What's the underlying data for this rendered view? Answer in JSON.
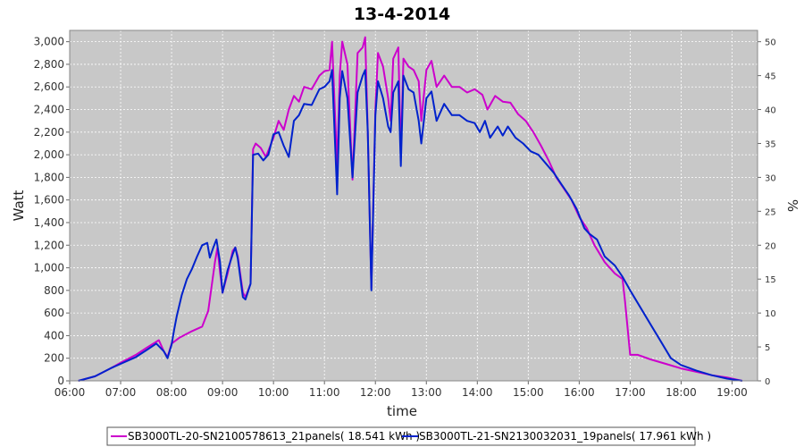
{
  "chart_data": {
    "type": "line",
    "title": "13-4-2014",
    "xlabel": "time",
    "ylabel": "Watt",
    "y2label": "%",
    "x_ticks": [
      "06:00",
      "07:00",
      "08:00",
      "09:00",
      "10:00",
      "11:00",
      "12:00",
      "13:00",
      "14:00",
      "15:00",
      "16:00",
      "17:00",
      "18:00",
      "19:00"
    ],
    "y_ticks": [
      "0",
      "200",
      "400",
      "600",
      "800",
      "1,000",
      "1,200",
      "1,400",
      "1,600",
      "1,800",
      "2,000",
      "2,200",
      "2,400",
      "2,600",
      "2,800",
      "3,000"
    ],
    "y2_ticks": [
      "0",
      "5",
      "10",
      "15",
      "20",
      "25",
      "30",
      "35",
      "40",
      "45",
      "50"
    ],
    "ylim": [
      0,
      3100
    ],
    "xlim_hours": [
      6.0,
      19.5
    ],
    "grid": true,
    "legend_position": "bottom",
    "series": [
      {
        "name": "SB3000TL-20-SN2100578613_21panels( 18.541 kWh )",
        "color": "#cc00cc",
        "points": [
          [
            6.17,
            0
          ],
          [
            6.5,
            40
          ],
          [
            6.8,
            110
          ],
          [
            7.0,
            160
          ],
          [
            7.3,
            230
          ],
          [
            7.5,
            290
          ],
          [
            7.75,
            360
          ],
          [
            7.85,
            260
          ],
          [
            7.92,
            210
          ],
          [
            8.0,
            330
          ],
          [
            8.15,
            380
          ],
          [
            8.4,
            440
          ],
          [
            8.6,
            480
          ],
          [
            8.72,
            620
          ],
          [
            8.85,
            1050
          ],
          [
            8.9,
            1180
          ],
          [
            8.95,
            960
          ],
          [
            9.0,
            780
          ],
          [
            9.1,
            950
          ],
          [
            9.2,
            1150
          ],
          [
            9.25,
            1180
          ],
          [
            9.3,
            1100
          ],
          [
            9.4,
            780
          ],
          [
            9.45,
            740
          ],
          [
            9.55,
            860
          ],
          [
            9.6,
            2050
          ],
          [
            9.65,
            2100
          ],
          [
            9.75,
            2060
          ],
          [
            9.85,
            1980
          ],
          [
            10.0,
            2150
          ],
          [
            10.1,
            2300
          ],
          [
            10.2,
            2220
          ],
          [
            10.3,
            2400
          ],
          [
            10.4,
            2520
          ],
          [
            10.5,
            2470
          ],
          [
            10.6,
            2600
          ],
          [
            10.75,
            2580
          ],
          [
            10.9,
            2700
          ],
          [
            11.0,
            2740
          ],
          [
            11.1,
            2750
          ],
          [
            11.15,
            3000
          ],
          [
            11.25,
            1900
          ],
          [
            11.3,
            2700
          ],
          [
            11.35,
            3000
          ],
          [
            11.45,
            2800
          ],
          [
            11.55,
            1780
          ],
          [
            11.65,
            2900
          ],
          [
            11.75,
            2950
          ],
          [
            11.8,
            3040
          ],
          [
            11.85,
            2200
          ],
          [
            11.92,
            820
          ],
          [
            12.0,
            2400
          ],
          [
            12.05,
            2900
          ],
          [
            12.15,
            2780
          ],
          [
            12.25,
            2500
          ],
          [
            12.3,
            2300
          ],
          [
            12.35,
            2850
          ],
          [
            12.45,
            2950
          ],
          [
            12.5,
            2000
          ],
          [
            12.55,
            2850
          ],
          [
            12.65,
            2780
          ],
          [
            12.75,
            2750
          ],
          [
            12.85,
            2650
          ],
          [
            12.9,
            2300
          ],
          [
            13.0,
            2750
          ],
          [
            13.1,
            2830
          ],
          [
            13.2,
            2600
          ],
          [
            13.35,
            2700
          ],
          [
            13.5,
            2600
          ],
          [
            13.65,
            2600
          ],
          [
            13.8,
            2550
          ],
          [
            13.95,
            2580
          ],
          [
            14.1,
            2530
          ],
          [
            14.2,
            2400
          ],
          [
            14.35,
            2520
          ],
          [
            14.5,
            2470
          ],
          [
            14.65,
            2460
          ],
          [
            14.8,
            2360
          ],
          [
            14.95,
            2300
          ],
          [
            15.1,
            2200
          ],
          [
            15.25,
            2080
          ],
          [
            15.4,
            1950
          ],
          [
            15.55,
            1800
          ],
          [
            15.7,
            1700
          ],
          [
            15.85,
            1600
          ],
          [
            16.0,
            1450
          ],
          [
            16.15,
            1350
          ],
          [
            16.3,
            1200
          ],
          [
            16.5,
            1050
          ],
          [
            16.7,
            950
          ],
          [
            16.85,
            900
          ],
          [
            16.9,
            700
          ],
          [
            17.0,
            230
          ],
          [
            17.15,
            230
          ],
          [
            17.4,
            190
          ],
          [
            17.7,
            150
          ],
          [
            18.0,
            110
          ],
          [
            18.3,
            80
          ],
          [
            18.6,
            50
          ],
          [
            18.9,
            30
          ],
          [
            19.2,
            0
          ]
        ]
      },
      {
        "name": "SB3000TL-21-SN2130032031_19panels( 17.961 kWh )",
        "color": "#0022cc",
        "points": [
          [
            6.17,
            0
          ],
          [
            6.5,
            40
          ],
          [
            6.8,
            110
          ],
          [
            7.0,
            150
          ],
          [
            7.3,
            210
          ],
          [
            7.5,
            270
          ],
          [
            7.7,
            330
          ],
          [
            7.85,
            260
          ],
          [
            7.92,
            200
          ],
          [
            8.0,
            320
          ],
          [
            8.05,
            450
          ],
          [
            8.1,
            570
          ],
          [
            8.2,
            760
          ],
          [
            8.3,
            900
          ],
          [
            8.4,
            990
          ],
          [
            8.5,
            1100
          ],
          [
            8.6,
            1200
          ],
          [
            8.7,
            1220
          ],
          [
            8.75,
            1090
          ],
          [
            8.82,
            1180
          ],
          [
            8.88,
            1250
          ],
          [
            8.95,
            1050
          ],
          [
            9.0,
            780
          ],
          [
            9.1,
            980
          ],
          [
            9.2,
            1120
          ],
          [
            9.25,
            1180
          ],
          [
            9.3,
            1080
          ],
          [
            9.4,
            740
          ],
          [
            9.45,
            720
          ],
          [
            9.55,
            860
          ],
          [
            9.6,
            2000
          ],
          [
            9.7,
            2010
          ],
          [
            9.8,
            1950
          ],
          [
            9.9,
            2000
          ],
          [
            10.0,
            2180
          ],
          [
            10.1,
            2200
          ],
          [
            10.2,
            2080
          ],
          [
            10.3,
            1980
          ],
          [
            10.4,
            2300
          ],
          [
            10.5,
            2350
          ],
          [
            10.6,
            2450
          ],
          [
            10.75,
            2440
          ],
          [
            10.9,
            2580
          ],
          [
            11.0,
            2600
          ],
          [
            11.1,
            2650
          ],
          [
            11.15,
            2750
          ],
          [
            11.25,
            1650
          ],
          [
            11.3,
            2500
          ],
          [
            11.35,
            2740
          ],
          [
            11.45,
            2500
          ],
          [
            11.55,
            1800
          ],
          [
            11.65,
            2550
          ],
          [
            11.75,
            2700
          ],
          [
            11.8,
            2750
          ],
          [
            11.85,
            2200
          ],
          [
            11.92,
            800
          ],
          [
            12.0,
            2350
          ],
          [
            12.05,
            2650
          ],
          [
            12.15,
            2500
          ],
          [
            12.25,
            2250
          ],
          [
            12.3,
            2200
          ],
          [
            12.35,
            2550
          ],
          [
            12.45,
            2650
          ],
          [
            12.5,
            1900
          ],
          [
            12.55,
            2700
          ],
          [
            12.65,
            2580
          ],
          [
            12.75,
            2550
          ],
          [
            12.85,
            2300
          ],
          [
            12.9,
            2100
          ],
          [
            13.0,
            2500
          ],
          [
            13.1,
            2560
          ],
          [
            13.2,
            2300
          ],
          [
            13.35,
            2450
          ],
          [
            13.5,
            2350
          ],
          [
            13.65,
            2350
          ],
          [
            13.8,
            2300
          ],
          [
            13.95,
            2280
          ],
          [
            14.05,
            2200
          ],
          [
            14.15,
            2300
          ],
          [
            14.25,
            2150
          ],
          [
            14.4,
            2250
          ],
          [
            14.5,
            2170
          ],
          [
            14.6,
            2250
          ],
          [
            14.75,
            2150
          ],
          [
            14.9,
            2100
          ],
          [
            15.05,
            2030
          ],
          [
            15.2,
            2000
          ],
          [
            15.35,
            1920
          ],
          [
            15.5,
            1840
          ],
          [
            15.65,
            1740
          ],
          [
            15.8,
            1640
          ],
          [
            15.95,
            1520
          ],
          [
            16.1,
            1350
          ],
          [
            16.2,
            1300
          ],
          [
            16.35,
            1250
          ],
          [
            16.5,
            1100
          ],
          [
            16.7,
            1020
          ],
          [
            16.85,
            920
          ],
          [
            17.0,
            800
          ],
          [
            17.2,
            650
          ],
          [
            17.4,
            500
          ],
          [
            17.6,
            350
          ],
          [
            17.8,
            200
          ],
          [
            18.0,
            140
          ],
          [
            18.3,
            90
          ],
          [
            18.6,
            50
          ],
          [
            18.9,
            20
          ],
          [
            19.2,
            0
          ]
        ]
      }
    ]
  },
  "legend": {
    "items": [
      {
        "label": "SB3000TL-20-SN2100578613_21panels( 18.541 kWh )",
        "color": "#cc00cc"
      },
      {
        "label": "SB3000TL-21-SN2130032031_19panels( 17.961 kWh )",
        "color": "#0022cc"
      }
    ]
  }
}
